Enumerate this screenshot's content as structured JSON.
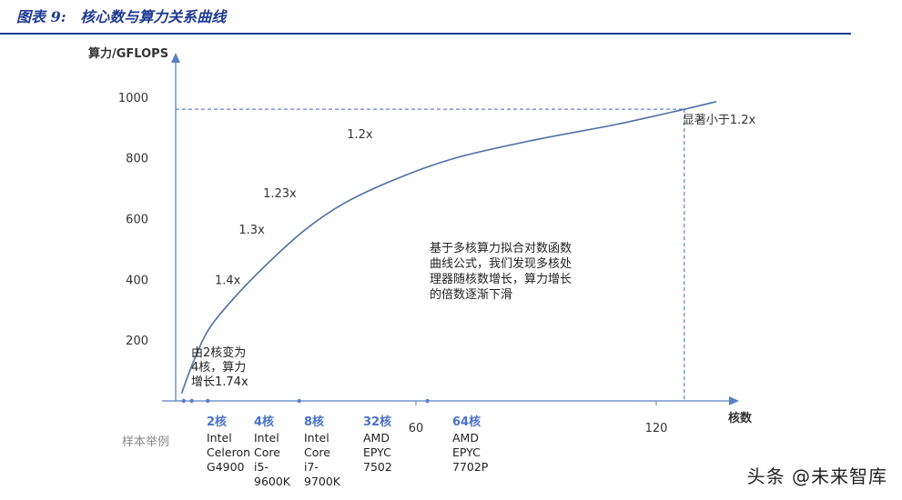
{
  "figure": {
    "label": "图表 9:",
    "title": "核心数与算力关系曲线"
  },
  "watermark": "头条 @未来智库",
  "chart_data": {
    "type": "line",
    "xlabel": "核数",
    "ylabel": "算力/GFLOPS",
    "xlim": [
      0,
      140
    ],
    "ylim": [
      0,
      1000
    ],
    "x_ticks": [
      60,
      120
    ],
    "y_ticks": [
      200,
      400,
      600,
      800,
      1000
    ],
    "grid": false,
    "series": [
      {
        "curve_points": [
          [
            1.5,
            25
          ],
          [
            4,
            115
          ],
          [
            8,
            230
          ],
          [
            14,
            330
          ],
          [
            22,
            440
          ],
          [
            32,
            560
          ],
          [
            42,
            650
          ],
          [
            55,
            730
          ],
          [
            70,
            800
          ],
          [
            90,
            860
          ],
          [
            110,
            910
          ],
          [
            127,
            960
          ],
          [
            135,
            985
          ]
        ]
      }
    ],
    "point_labels": [
      {
        "text": "1.4x",
        "x": 13,
        "y": 385
      },
      {
        "text": "1.3x",
        "x": 19,
        "y": 550
      },
      {
        "text": "1.23x",
        "x": 26,
        "y": 670
      },
      {
        "text": "1.2x",
        "x": 46,
        "y": 865
      }
    ],
    "reference_lines": {
      "x": 127,
      "y": 960,
      "label": "显著小于1.2x"
    },
    "annotations": [
      {
        "lines": [
          "由2核变为",
          "4核，算力",
          "增长1.74x"
        ]
      },
      {
        "lines": [
          "基于多核算力拟合对数函数",
          "曲线公式，我们发现多核处",
          "理器随核数增长，算力增长",
          "的倍数逐渐下滑"
        ]
      }
    ],
    "sample_row_label": "样本举例",
    "samples": [
      {
        "cores": 2,
        "label": "2核",
        "lines": [
          "Intel",
          "Celeron",
          "G4900"
        ]
      },
      {
        "cores": 4,
        "label": "4核",
        "lines": [
          "Intel",
          "Core",
          "i5-",
          "9600K"
        ]
      },
      {
        "cores": 8,
        "label": "8核",
        "lines": [
          "Intel",
          "Core",
          "i7-",
          "9700K"
        ]
      },
      {
        "cores": 32,
        "label": "32核",
        "lines": [
          "AMD",
          "EPYC",
          "7502"
        ]
      },
      {
        "cores": 64,
        "label": "64核",
        "lines": [
          "AMD",
          "EPYC",
          "7702P"
        ]
      }
    ],
    "colors": {
      "curve": "#4a6fa5",
      "axis": "#5b7fc7",
      "sample_label": "#4a72c8",
      "ref": "#3c67c4",
      "muted": "#888888"
    }
  }
}
